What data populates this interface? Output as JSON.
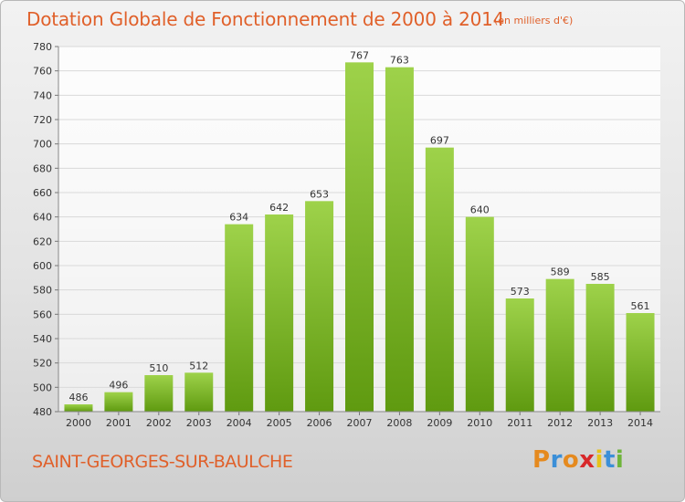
{
  "header": {
    "title": "Dotation Globale de Fonctionnement de 2000 à 2014",
    "unit": "(en milliers d'€)"
  },
  "footer": {
    "commune": "SAINT-GEORGES-SUR-BAULCHE",
    "logo_letters": [
      "P",
      "r",
      "o",
      "x",
      "i",
      "t",
      "i"
    ],
    "logo_colors": [
      "#e58a1f",
      "#3b8fd8",
      "#e58a1f",
      "#d8282a",
      "#e6c21a",
      "#3b8fd8",
      "#6fb43a"
    ]
  },
  "chart_data": {
    "type": "bar",
    "categories": [
      "2000",
      "2001",
      "2002",
      "2003",
      "2004",
      "2005",
      "2006",
      "2007",
      "2008",
      "2009",
      "2010",
      "2011",
      "2012",
      "2013",
      "2014"
    ],
    "values": [
      486,
      496,
      510,
      512,
      634,
      642,
      653,
      767,
      763,
      697,
      640,
      573,
      589,
      585,
      561
    ],
    "data_labels": [
      "486",
      "496",
      "510",
      "512",
      "634",
      "642",
      "653",
      "767",
      "763",
      "697",
      "640",
      "573",
      "589",
      "585",
      "561"
    ],
    "yticks": [
      "480",
      "500",
      "520",
      "540",
      "560",
      "580",
      "600",
      "620",
      "640",
      "660",
      "680",
      "700",
      "720",
      "740",
      "760",
      "780"
    ],
    "ylim": [
      480,
      780
    ],
    "grid": true,
    "colors": {
      "bar_light": "#9ed24a",
      "bar_dark": "#5f9a10",
      "grid": "#d9d9d9",
      "axis_text": "#333333"
    }
  }
}
